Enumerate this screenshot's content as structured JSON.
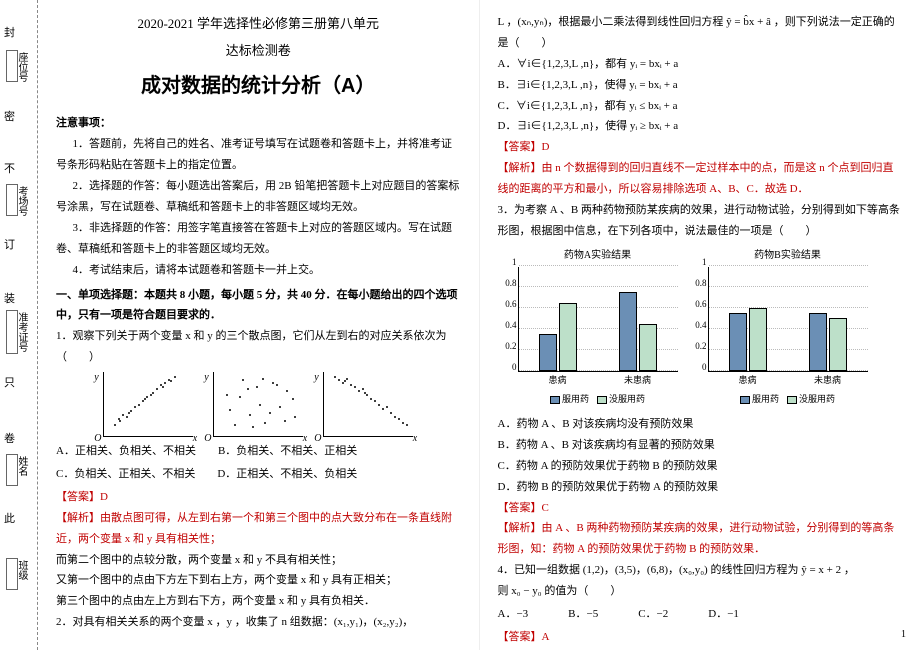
{
  "binding": {
    "dash_labels": [
      "封",
      "密",
      "不",
      "订",
      "装",
      "只",
      "卷",
      "此"
    ],
    "field_labels": [
      "座位号",
      "考场号",
      "准考证号",
      "姓名",
      "班级"
    ]
  },
  "left": {
    "title_line1": "2020-2021 学年选择性必修第三册第八单元",
    "title_line2": "达标检测卷",
    "title_main": "成对数据的统计分析（A）",
    "notice_heading": "注意事项：",
    "notice_items": [
      "1．答题前，先将自己的姓名、准考证号填写在试题卷和答题卡上，并将准考证号条形码粘贴在答题卡上的指定位置。",
      "2．选择题的作答：每小题选出答案后，用 2B 铅笔把答题卡上对应题目的答案标号涂黑，写在试题卷、草稿纸和答题卡上的非答题区域均无效。",
      "3．非选择题的作答：用签字笔直接答在答题卡上对应的答题区域内。写在试题卷、草稿纸和答题卡上的非答题区域均无效。",
      "4．考试结束后，请将本试题卷和答题卡一并上交。"
    ],
    "part1_heading": "一、单项选择题：本题共 8 小题，每小题 5 分，共 40 分．在每小题给出的四个选项中，只有一项是符合题目要求的．",
    "q1": "1．观察下列关于两个变量 x 和 y 的三个散点图，它们从左到右的对应关系依次为（　　）",
    "q1_opts": {
      "A": "A．正相关、负相关、不相关",
      "B": "B．负相关、不相关、正相关",
      "C": "C．负相关、正相关、不相关",
      "D": "D．正相关、不相关、负相关"
    },
    "q1_ans": "【答案】D",
    "q1_exp": "【解析】由散点图可得，从左到右第一个和第三个图中的点大致分布在一条直线附近，两个变量 x 和 y 具有相关性；",
    "q1_exp2": "而第二个图中的点较分散，两个变量 x 和 y 不具有相关性；",
    "q1_exp3": "又第一个图中的点由下方左下到右上方，两个变量 x 和 y 具有正相关；",
    "q1_exp4": "第三个图中的点由左上方到右下方，两个变量 x 和 y 具有负相关．",
    "q2": "2．对具有相关关系的两个变量 x ，y ，收集了 n 组数据：(x₁,y₁)，(x₂,y₂)，",
    "scatter": {
      "bg": "#ffffff",
      "axis": "#000000",
      "dot": "#000000",
      "s1": [
        [
          10,
          10
        ],
        [
          15,
          14
        ],
        [
          18,
          20
        ],
        [
          22,
          18
        ],
        [
          26,
          24
        ],
        [
          30,
          28
        ],
        [
          34,
          30
        ],
        [
          38,
          34
        ],
        [
          42,
          38
        ],
        [
          48,
          42
        ],
        [
          52,
          46
        ],
        [
          56,
          50
        ],
        [
          60,
          52
        ],
        [
          64,
          55
        ],
        [
          70,
          58
        ],
        [
          14,
          16
        ],
        [
          24,
          22
        ],
        [
          40,
          36
        ],
        [
          46,
          40
        ],
        [
          58,
          48
        ],
        [
          66,
          54
        ]
      ],
      "s2": [
        [
          12,
          40
        ],
        [
          20,
          10
        ],
        [
          28,
          55
        ],
        [
          35,
          20
        ],
        [
          42,
          48
        ],
        [
          50,
          12
        ],
        [
          58,
          52
        ],
        [
          65,
          28
        ],
        [
          72,
          44
        ],
        [
          80,
          18
        ],
        [
          15,
          25
        ],
        [
          25,
          38
        ],
        [
          33,
          46
        ],
        [
          45,
          30
        ],
        [
          55,
          22
        ],
        [
          62,
          50
        ],
        [
          70,
          14
        ],
        [
          78,
          36
        ],
        [
          38,
          8
        ],
        [
          48,
          56
        ]
      ],
      "s3": [
        [
          10,
          58
        ],
        [
          14,
          55
        ],
        [
          18,
          52
        ],
        [
          22,
          56
        ],
        [
          26,
          50
        ],
        [
          30,
          48
        ],
        [
          34,
          44
        ],
        [
          38,
          46
        ],
        [
          42,
          40
        ],
        [
          46,
          36
        ],
        [
          50,
          34
        ],
        [
          54,
          30
        ],
        [
          58,
          26
        ],
        [
          62,
          28
        ],
        [
          66,
          22
        ],
        [
          70,
          18
        ],
        [
          74,
          16
        ],
        [
          78,
          12
        ],
        [
          82,
          10
        ],
        [
          20,
          54
        ],
        [
          40,
          42
        ]
      ]
    }
  },
  "right": {
    "q2_cont": "L ，(xₙ,yₙ)，根据最小二乘法得到线性回归方程 ŷ = b̂x + â ，则下列说法一定正确的是（　　）",
    "q2_opts": {
      "A": "A．∀i∈{1,2,3,L ,n}，都有 yᵢ = bxᵢ + a",
      "B": "B．∃i∈{1,2,3,L ,n}，使得 yᵢ = bxᵢ + a",
      "C": "C．∀i∈{1,2,3,L ,n}，都有 yᵢ ≤ bxᵢ + a",
      "D": "D．∃i∈{1,2,3,L ,n}，使得 yᵢ ≥ bxᵢ + a"
    },
    "q2_ans": "【答案】D",
    "q2_exp": "【解析】由 n 个数据得到的回归直线不一定过样本中的点，而是这 n 个点到回归直线的距离的平方和最小，所以容易排除选项 A、B、C．故选 D．",
    "q3": "3．为考察 A 、B 两种药物预防某疾病的效果，进行动物试验，分别得到如下等高条形图，根据图中信息，在下列各项中，说法最佳的一项是（　　）",
    "chartA_title": "药物A实验结果",
    "chartB_title": "药物B实验结果",
    "q3_opts": {
      "A": "A．药物 A 、B 对该疾病均没有预防效果",
      "B": "B．药物 A 、B 对该疾病均有显著的预防效果",
      "C": "C．药物 A 的预防效果优于药物 B 的预防效果",
      "D": "D．药物 B 的预防效果优于药物 A 的预防效果"
    },
    "q3_ans": "【答案】C",
    "q3_exp": "【解析】由 A 、B 两种药物预防某疾病的效果，进行动物试验，分别得到的等高条形图，知：药物 A 的预防效果优于药物 B 的预防效果．",
    "q4": "4．已知一组数据 (1,2)，(3,5)，(6,8)，(x₀,y₀) 的线性回归方程为 ŷ = x + 2 ，",
    "q4b": "则 x₀ − y₀ 的值为（　　）",
    "q4_opts": {
      "A": "A．−3",
      "B": "B．−5",
      "C": "C．−2",
      "D": "D．−1"
    },
    "q4_ans": "【答案】A",
    "chart": {
      "ymax": 1.0,
      "ytick": 0.2,
      "ylabels": [
        "0",
        "0.2",
        "0.4",
        "0.6",
        "0.8",
        "1"
      ],
      "colors": {
        "used": "#6b8fb5",
        "notused": "#bde0c9",
        "border": "#000000"
      },
      "xcats": [
        "患病",
        "未患病"
      ],
      "legend1": "服用药",
      "legend2": "没服用药",
      "A": {
        "sick": [
          0.35,
          0.65
        ],
        "well": [
          0.75,
          0.45
        ]
      },
      "B": {
        "sick": [
          0.55,
          0.6
        ],
        "well": [
          0.55,
          0.5
        ]
      }
    }
  },
  "pagenum": "1"
}
